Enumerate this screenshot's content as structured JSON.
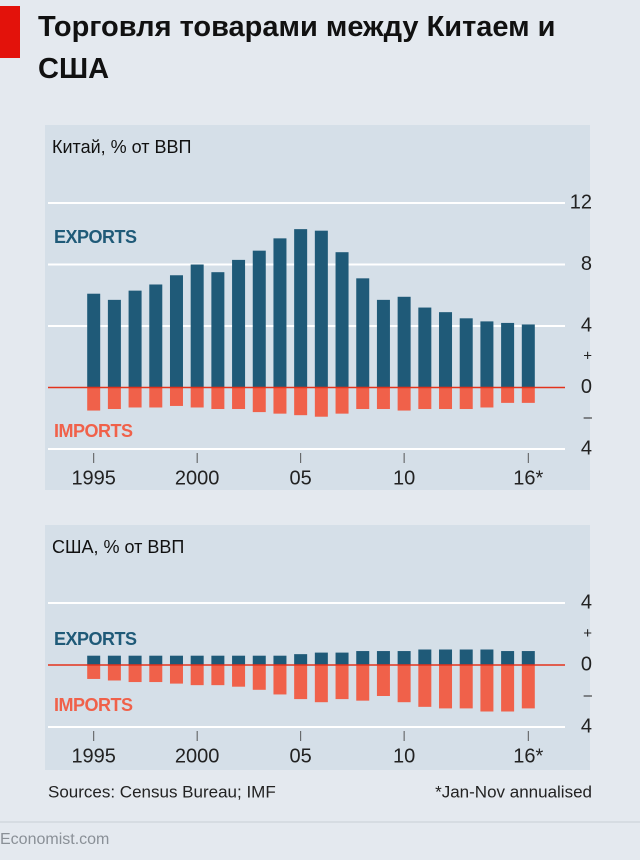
{
  "title": "Торговля товарами между Китаем и США",
  "chart_data": [
    {
      "type": "bar",
      "subtitle": "Китай, % от ВВП",
      "x": [
        1995,
        1996,
        1997,
        1998,
        1999,
        2000,
        2001,
        2002,
        2003,
        2004,
        2005,
        2006,
        2007,
        2008,
        2009,
        2010,
        2011,
        2012,
        2013,
        2014,
        2015,
        2016
      ],
      "series": [
        {
          "name": "EXPORTS",
          "color": "#1f5a78",
          "values": [
            6.1,
            5.7,
            6.3,
            6.7,
            7.3,
            8.0,
            7.5,
            8.3,
            8.9,
            9.7,
            10.3,
            10.2,
            8.8,
            7.1,
            5.7,
            5.9,
            5.2,
            4.9,
            4.5,
            4.3,
            4.2,
            4.1
          ]
        },
        {
          "name": "IMPORTS",
          "color": "#f0614a",
          "values": [
            -1.5,
            -1.4,
            -1.3,
            -1.3,
            -1.2,
            -1.3,
            -1.4,
            -1.4,
            -1.6,
            -1.7,
            -1.8,
            -1.9,
            -1.7,
            -1.4,
            -1.4,
            -1.5,
            -1.4,
            -1.4,
            -1.4,
            -1.3,
            -1.0,
            -1.0
          ]
        }
      ],
      "xlim": [
        1994,
        2017
      ],
      "xticks": [
        1995,
        2000,
        {
          "value": 2005,
          "label": "05"
        },
        {
          "value": 2010,
          "label": "10"
        },
        {
          "value": 2016,
          "label": "16*"
        }
      ],
      "ylim": [
        -4,
        12
      ],
      "yticks": [
        {
          "value": -4,
          "label": "4"
        },
        {
          "value": -2,
          "label": "–"
        },
        0,
        {
          "value": 2,
          "label": "+"
        },
        4,
        8,
        12
      ],
      "grid": true
    },
    {
      "type": "bar",
      "subtitle": "США, % от ВВП",
      "x": [
        1995,
        1996,
        1997,
        1998,
        1999,
        2000,
        2001,
        2002,
        2003,
        2004,
        2005,
        2006,
        2007,
        2008,
        2009,
        2010,
        2011,
        2012,
        2013,
        2014,
        2015,
        2016
      ],
      "series": [
        {
          "name": "EXPORTS",
          "color": "#1f5a78",
          "values": [
            0.6,
            0.6,
            0.6,
            0.6,
            0.6,
            0.6,
            0.6,
            0.6,
            0.6,
            0.6,
            0.7,
            0.8,
            0.8,
            0.9,
            0.9,
            0.9,
            1.0,
            1.0,
            1.0,
            1.0,
            0.9,
            0.9
          ]
        },
        {
          "name": "IMPORTS",
          "color": "#f0614a",
          "values": [
            -0.9,
            -1.0,
            -1.1,
            -1.1,
            -1.2,
            -1.3,
            -1.3,
            -1.4,
            -1.6,
            -1.9,
            -2.2,
            -2.4,
            -2.2,
            -2.3,
            -2.0,
            -2.4,
            -2.7,
            -2.8,
            -2.8,
            -3.0,
            -3.0,
            -2.8
          ]
        }
      ],
      "xlim": [
        1994,
        2017
      ],
      "xticks": [
        1995,
        2000,
        {
          "value": 2005,
          "label": "05"
        },
        {
          "value": 2010,
          "label": "10"
        },
        {
          "value": 2016,
          "label": "16*"
        }
      ],
      "ylim": [
        -4,
        4
      ],
      "yticks": [
        {
          "value": -4,
          "label": "4"
        },
        {
          "value": -2,
          "label": "–"
        },
        0,
        {
          "value": 2,
          "label": "+"
        },
        4
      ],
      "grid": true
    }
  ],
  "source": "Sources: Census Bureau; IMF",
  "note": "*Jan-Nov annualised",
  "credit": "Economist.com"
}
